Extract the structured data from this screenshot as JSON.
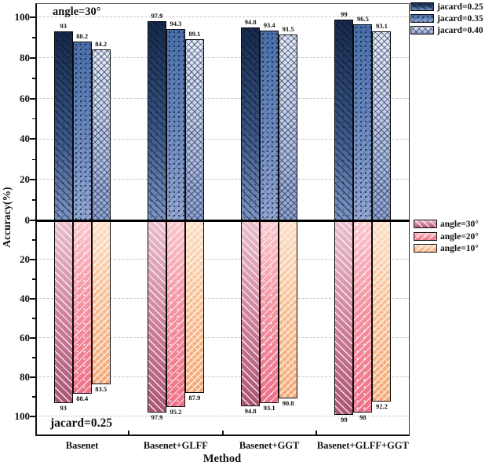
{
  "figure": {
    "ylabel": "Accuracy(%)",
    "xlabel": "Method"
  },
  "chart_data": {
    "type": "bar",
    "orientation": "mirrored-vertical (top and bottom charts share x-axis, zero line in middle)",
    "grid": "horizontal dashed gridlines every 20 units",
    "ylim": [
      0,
      100
    ],
    "ylabel": "Accuracy(%)",
    "xlabel": "Method",
    "categories": [
      "Basenet",
      "Basenet+GLFF",
      "Basenet+GGT",
      "Basenet+GLFF+GGT"
    ],
    "yticks_top": [
      100,
      80,
      60,
      40,
      20,
      0
    ],
    "yticks_bottom": [
      20,
      40,
      60,
      80,
      100
    ],
    "top": {
      "annotation": "angle=30°",
      "legend_position": "upper right, outside plot",
      "series": [
        {
          "name": "jacard=0.25",
          "pattern": "dark diagonal hatch + dots",
          "color_top": "#16294a",
          "color_bottom": "#7e96c6",
          "values": [
            93,
            97.9,
            94.8,
            99
          ]
        },
        {
          "name": "jacard=0.35",
          "pattern": "dark dots",
          "color_top": "#4a71ab",
          "color_bottom": "#95a9d6",
          "values": [
            88.2,
            94.3,
            93.4,
            96.5
          ]
        },
        {
          "name": "jacard=0.40",
          "pattern": "dark crosshatch",
          "color_top": "#e6ebf5",
          "color_bottom": "#8fa0cd",
          "values": [
            84.2,
            89.1,
            91.5,
            93.1
          ]
        }
      ]
    },
    "bottom": {
      "annotation": "jacard=0.25",
      "legend_position": "right, just below zero line, outside plot",
      "series": [
        {
          "name": "angle=30°",
          "pattern": "white forward-diagonal hatch",
          "color_top": "#eabfcd",
          "color_bottom": "#aa5474",
          "values": [
            93,
            97.9,
            94.8,
            99
          ]
        },
        {
          "name": "angle=20°",
          "pattern": "white back-diagonal hatch + white dots",
          "color_top": "#fbc6cd",
          "color_bottom": "#ee7187",
          "values": [
            88.4,
            95.2,
            93.1,
            98
          ]
        },
        {
          "name": "angle=10°",
          "pattern": "white back-diagonal hatch",
          "color_top": "#fcdfc6",
          "color_bottom": "#f5a773",
          "values": [
            83.5,
            87.9,
            90.8,
            92.2
          ]
        }
      ]
    }
  }
}
